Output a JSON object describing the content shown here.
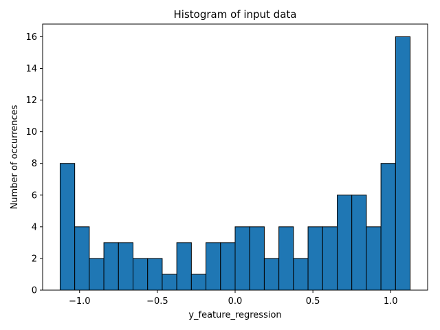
{
  "chart_data": {
    "type": "bar",
    "subtype": "histogram",
    "title": "Histogram of input data",
    "xlabel": "y_feature_regression",
    "ylabel": "Number of occurrences",
    "bin_start": -1.125,
    "bin_width": 0.09375,
    "counts": [
      8,
      4,
      2,
      3,
      3,
      2,
      2,
      1,
      3,
      1,
      3,
      3,
      4,
      4,
      2,
      4,
      2,
      4,
      4,
      6,
      6,
      4,
      8,
      16
    ],
    "xlim": [
      -1.2375,
      1.2375
    ],
    "ylim": [
      0,
      16.8
    ],
    "xticks": [
      -1.0,
      -0.5,
      0.0,
      0.5,
      1.0
    ],
    "xtick_labels": [
      "−1.0",
      "−0.5",
      "0.0",
      "0.5",
      "1.0"
    ],
    "yticks": [
      0,
      2,
      4,
      6,
      8,
      10,
      12,
      14,
      16
    ],
    "ytick_labels": [
      "0",
      "2",
      "4",
      "6",
      "8",
      "10",
      "12",
      "14",
      "16"
    ],
    "bar_color": "#1f77b4",
    "edge_color": "#000000",
    "grid": false,
    "legend": "none"
  }
}
